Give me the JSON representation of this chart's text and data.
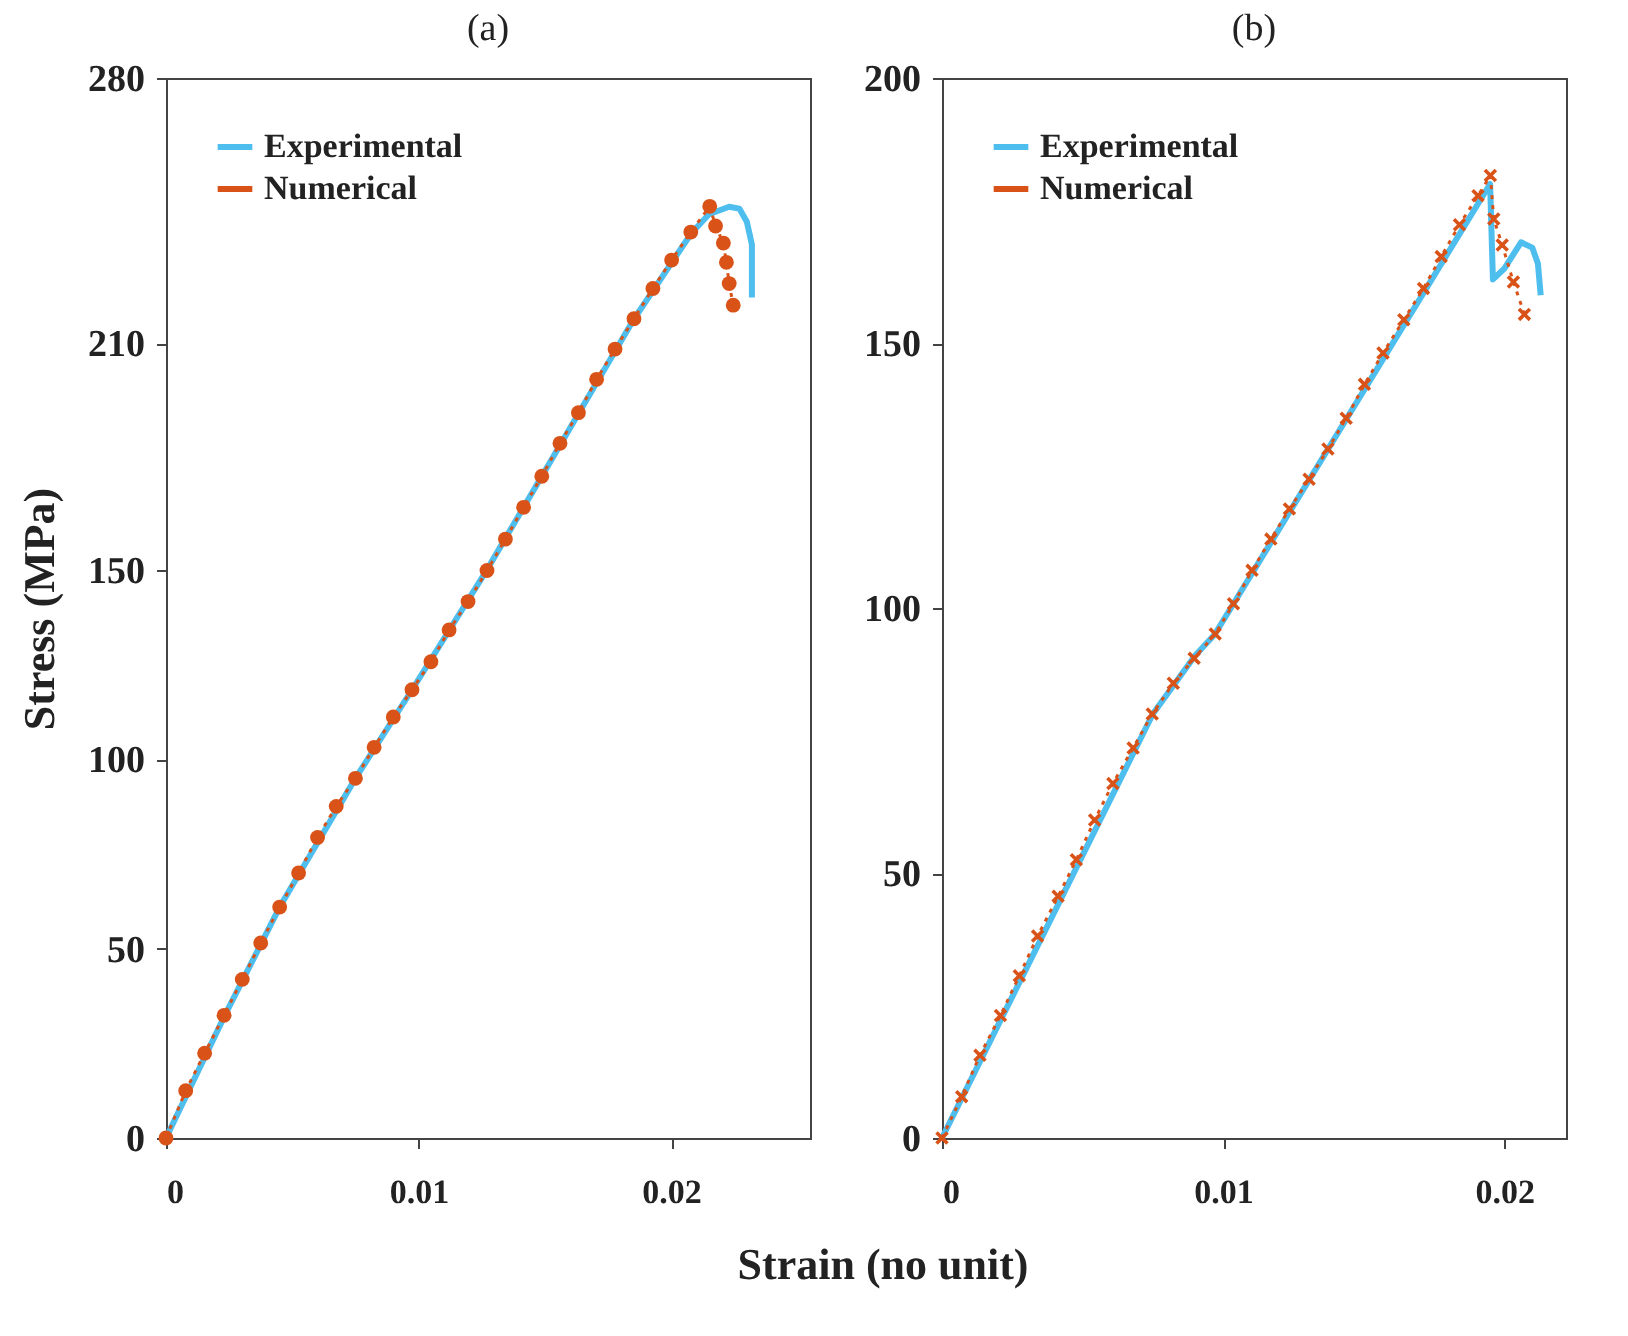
{
  "chart_data": [
    {
      "type": "line",
      "title": "(a)",
      "xlabel": "Strain (no unit)",
      "ylabel": "Stress (MPa)",
      "xlim": [
        0,
        0.0255
      ],
      "ylim": [
        0,
        280
      ],
      "xticks": [
        0,
        0.01,
        0.02
      ],
      "yticks": [
        0,
        50,
        100,
        150,
        210,
        280
      ],
      "legend": "top left",
      "grid": false,
      "series": [
        {
          "name": "Experimental",
          "color": "#4dbeee",
          "line_style": "solid",
          "marker": "none",
          "x": [
            0,
            0.0023,
            0.0045,
            0.0075,
            0.0098,
            0.0127,
            0.0156,
            0.0185,
            0.0208,
            0.0215,
            0.0223,
            0.0227,
            0.023,
            0.0232,
            0.0232
          ],
          "values": [
            0,
            32,
            61,
            95,
            119,
            150,
            183,
            216,
            239,
            244,
            246,
            245.5,
            242,
            236,
            222
          ]
        },
        {
          "name": "Numerical",
          "color": "#d95319",
          "line_style": "dotted",
          "marker": "circle",
          "x": [
            0,
            0.00078,
            0.00153,
            0.0023,
            0.00302,
            0.00375,
            0.0045,
            0.00525,
            0.006,
            0.00674,
            0.0075,
            0.00824,
            0.009,
            0.00974,
            0.01049,
            0.01121,
            0.01196,
            0.01271,
            0.01344,
            0.01416,
            0.01488,
            0.0156,
            0.01633,
            0.01705,
            0.01778,
            0.01853,
            0.01928,
            0.02002,
            0.02078,
            0.02153,
            0.02176,
            0.02207,
            0.02219,
            0.0223,
            0.02246
          ],
          "values": [
            0,
            12.5,
            22.4,
            32.4,
            41.9,
            51.5,
            61,
            70,
            79.4,
            87.6,
            95,
            103.2,
            111.2,
            118.4,
            125.8,
            134.2,
            141.7,
            149.9,
            158.2,
            166.6,
            174.8,
            183.5,
            191.6,
            200.4,
            208.4,
            216.4,
            224.4,
            231.9,
            239.3,
            246.1,
            240.9,
            236.4,
            231.3,
            225.7,
            220
          ]
        }
      ]
    },
    {
      "type": "line",
      "title": "(b)",
      "xlim": [
        0,
        0.0222
      ],
      "ylim": [
        0,
        200
      ],
      "xticks": [
        0,
        0.01,
        0.02
      ],
      "yticks": [
        0,
        50,
        100,
        150,
        200
      ],
      "legend": "top left",
      "grid": false,
      "series": [
        {
          "name": "Experimental",
          "color": "#4dbeee",
          "line_style": "solid",
          "marker": "none",
          "x": [
            0,
            0.0075,
            0.009,
            0.0097,
            0.0195,
            0.0196,
            0.02,
            0.0206,
            0.021,
            0.0212,
            0.0213
          ],
          "values": [
            0,
            80,
            91,
            95,
            180,
            162,
            164,
            169,
            168,
            165,
            159
          ]
        },
        {
          "name": "Numerical",
          "color": "#d95319",
          "line_style": "dotted",
          "marker": "cross",
          "x": [
            0,
            0.0007,
            0.00135,
            0.00208,
            0.00275,
            0.0034,
            0.00413,
            0.00478,
            0.00543,
            0.00608,
            0.0068,
            0.00748,
            0.00823,
            0.00897,
            0.00972,
            0.01037,
            0.01103,
            0.0117,
            0.01236,
            0.01306,
            0.01373,
            0.01438,
            0.01503,
            0.01569,
            0.01643,
            0.01713,
            0.01776,
            0.01841,
            0.01907,
            0.01951,
            0.01963,
            0.01993,
            0.02033,
            0.02072
          ],
          "values": [
            0,
            7.8,
            15.6,
            23.1,
            30.6,
            38.1,
            45.6,
            52.5,
            60,
            66.9,
            73.6,
            80,
            85.8,
            90.5,
            95.1,
            100.8,
            107.1,
            113,
            118.7,
            124.3,
            130,
            135.8,
            142.2,
            148.1,
            154.4,
            160.3,
            166.3,
            172.3,
            177.8,
            181.6,
            173.4,
            168.5,
            161.5,
            155.4
          ]
        }
      ]
    }
  ]
}
